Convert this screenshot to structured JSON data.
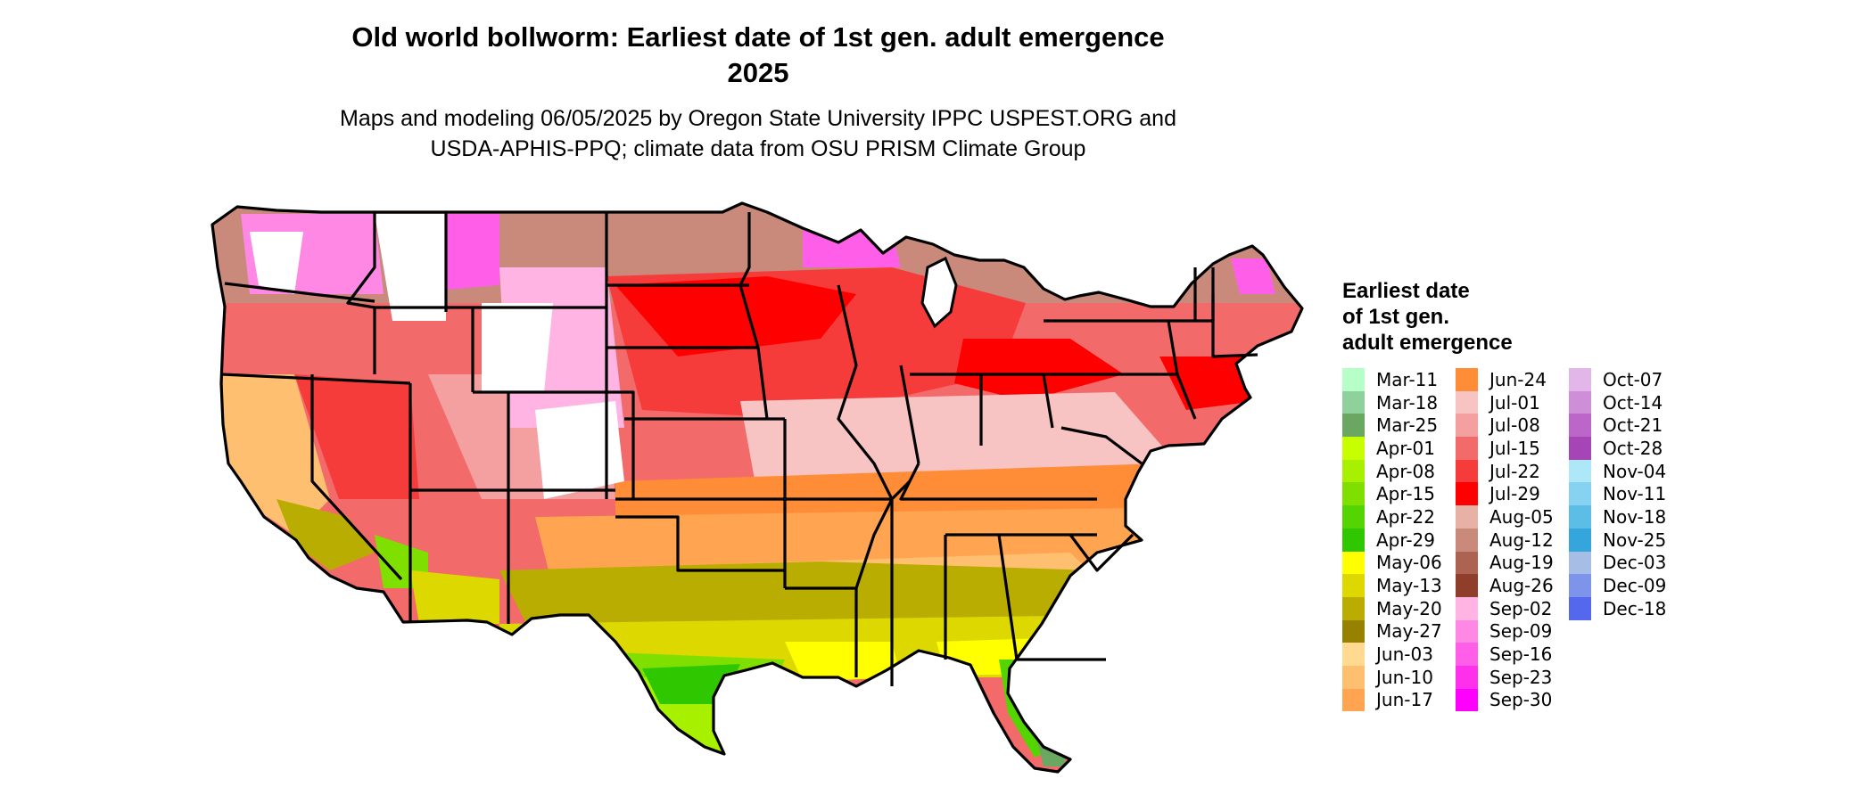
{
  "figure": {
    "title_line1": "Old world bollworm: Earliest date of 1st gen. adult emergence",
    "title_line2": "2025",
    "subtitle_line1": "Maps and modeling 06/05/2025 by Oregon State University IPPC USPEST.ORG and",
    "subtitle_line2": "USDA-APHIS-PPQ; climate data from OSU PRISM Climate Group"
  },
  "legend": {
    "title_line1": "Earliest date",
    "title_line2": "of 1st gen.",
    "title_line3": "adult emergence",
    "columns": [
      [
        {
          "label": "Mar-11",
          "color": "#b6ffc8"
        },
        {
          "label": "Mar-18",
          "color": "#8fd19b"
        },
        {
          "label": "Mar-25",
          "color": "#6aa760"
        },
        {
          "label": "Apr-01",
          "color": "#c7ff00"
        },
        {
          "label": "Apr-08",
          "color": "#a6f000"
        },
        {
          "label": "Apr-15",
          "color": "#7fe000"
        },
        {
          "label": "Apr-22",
          "color": "#54d400"
        },
        {
          "label": "Apr-29",
          "color": "#2fc800"
        },
        {
          "label": "May-06",
          "color": "#ffff00"
        },
        {
          "label": "May-13",
          "color": "#dcd800"
        },
        {
          "label": "May-20",
          "color": "#b8ad00"
        },
        {
          "label": "May-27",
          "color": "#968200"
        },
        {
          "label": "Jun-03",
          "color": "#ffda90"
        },
        {
          "label": "Jun-10",
          "color": "#ffbf70"
        },
        {
          "label": "Jun-17",
          "color": "#ffa552"
        }
      ],
      [
        {
          "label": "Jun-24",
          "color": "#ff8d38"
        },
        {
          "label": "Jul-01",
          "color": "#f8c3c3"
        },
        {
          "label": "Jul-08",
          "color": "#f4a0a0"
        },
        {
          "label": "Jul-15",
          "color": "#f36a6a"
        },
        {
          "label": "Jul-22",
          "color": "#f63b3b"
        },
        {
          "label": "Jul-29",
          "color": "#ff0000"
        },
        {
          "label": "Aug-05",
          "color": "#e8b1a6"
        },
        {
          "label": "Aug-12",
          "color": "#c98a7c"
        },
        {
          "label": "Aug-19",
          "color": "#ac6351"
        },
        {
          "label": "Aug-26",
          "color": "#8f3e2b"
        },
        {
          "label": "Sep-02",
          "color": "#ffb4e4"
        },
        {
          "label": "Sep-09",
          "color": "#ff88e4"
        },
        {
          "label": "Sep-16",
          "color": "#ff5ee8"
        },
        {
          "label": "Sep-23",
          "color": "#ff30ec"
        },
        {
          "label": "Sep-30",
          "color": "#ff00ff"
        }
      ],
      [
        {
          "label": "Oct-07",
          "color": "#e2b6e8"
        },
        {
          "label": "Oct-14",
          "color": "#cf8ed8"
        },
        {
          "label": "Oct-21",
          "color": "#bb66c8"
        },
        {
          "label": "Oct-28",
          "color": "#a645b6"
        },
        {
          "label": "Nov-04",
          "color": "#aee8f8"
        },
        {
          "label": "Nov-11",
          "color": "#86d2f0"
        },
        {
          "label": "Nov-18",
          "color": "#5cbde6"
        },
        {
          "label": "Nov-25",
          "color": "#34a6dc"
        },
        {
          "label": "Dec-03",
          "color": "#a6bde6"
        },
        {
          "label": "Dec-09",
          "color": "#7d94ea"
        },
        {
          "label": "Dec-18",
          "color": "#5468ee"
        }
      ]
    ]
  }
}
